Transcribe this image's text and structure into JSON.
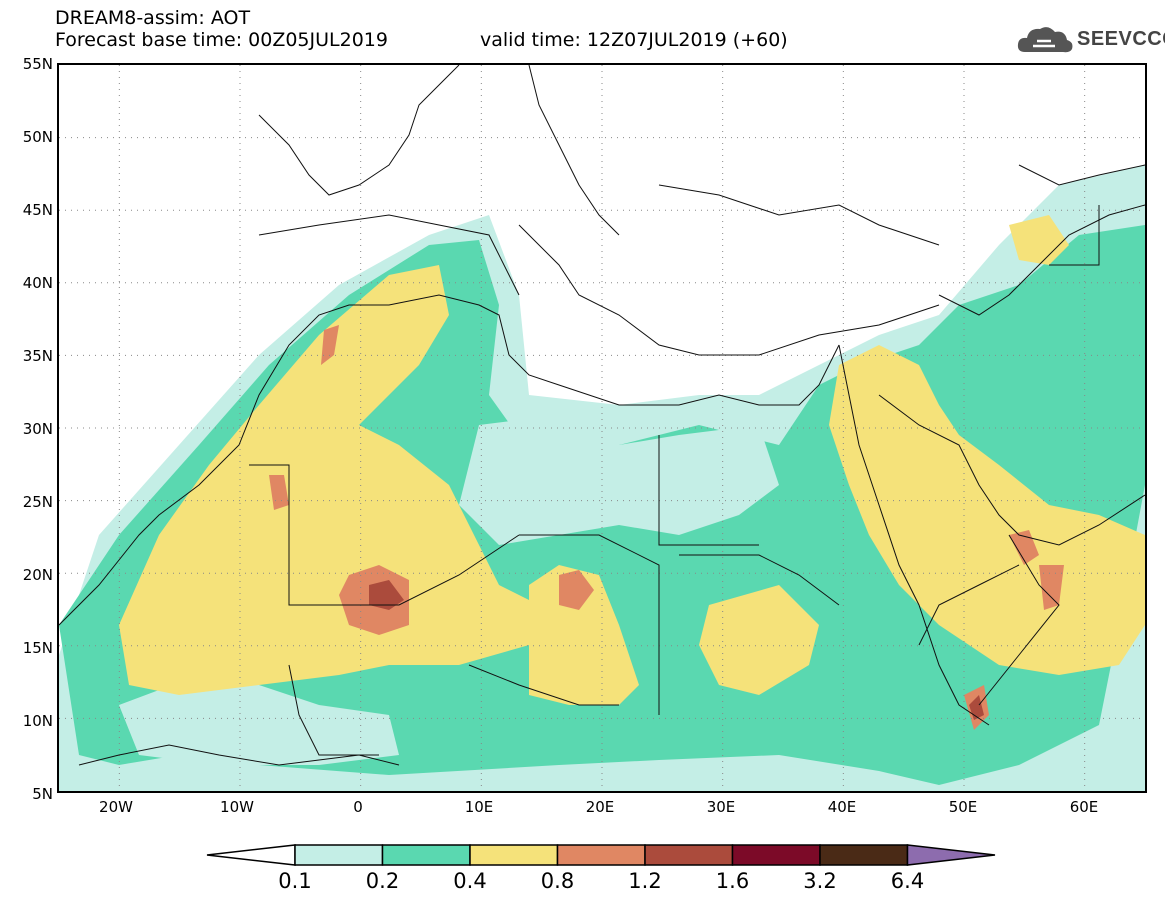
{
  "header": {
    "line1": "DREAM8-assim: AOT",
    "line2": "Forecast base time: 00Z05JUL2019",
    "valid": "valid time: 12Z07JUL2019 (+60)"
  },
  "logo": {
    "text": "SEEVCCC",
    "icon": "cloud-icon"
  },
  "map": {
    "variable": "AOT",
    "lon_range": [
      -25,
      65
    ],
    "lat_range": [
      5,
      55
    ],
    "lat_ticks": [
      "55N",
      "50N",
      "45N",
      "40N",
      "35N",
      "30N",
      "25N",
      "20N",
      "15N",
      "10N",
      "5N"
    ],
    "lon_ticks": [
      "20W",
      "10W",
      "0",
      "10E",
      "20E",
      "30E",
      "40E",
      "50E",
      "60E"
    ],
    "gridlines": true
  },
  "colorbar": {
    "labels": [
      "0.1",
      "0.2",
      "0.4",
      "0.8",
      "1.2",
      "1.6",
      "3.2",
      "6.4"
    ],
    "colors": [
      "#ffffff",
      "#c4eee6",
      "#5ad8b0",
      "#f5e27a",
      "#e08763",
      "#ab4b3c",
      "#7c0a28",
      "#4a2a16",
      "#8d6cae"
    ]
  }
}
